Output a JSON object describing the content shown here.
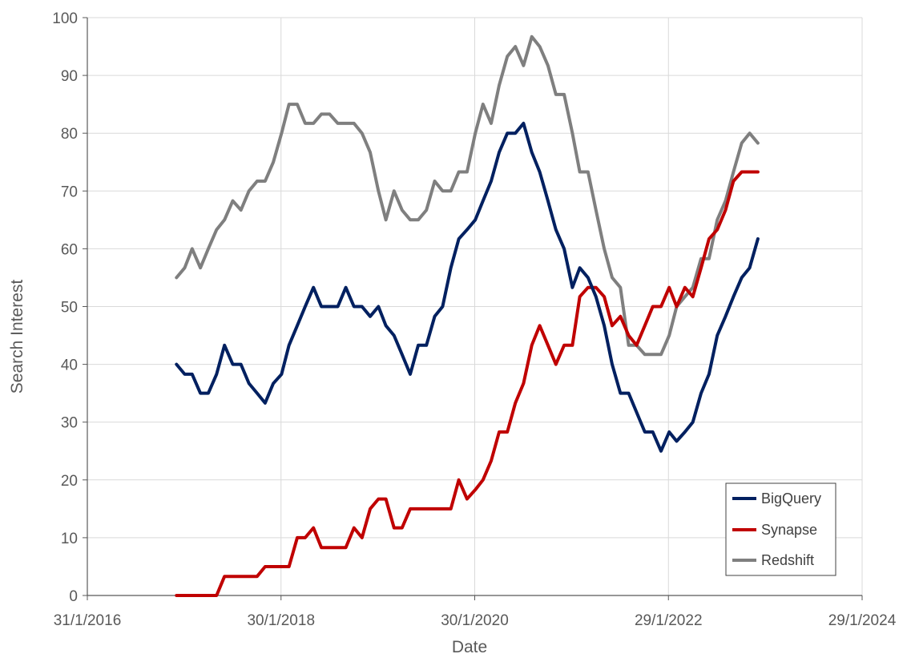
{
  "chart_data": {
    "type": "line",
    "title": "",
    "xlabel": "Date",
    "ylabel": "Search Interest",
    "xlim": [
      "2016-01-31",
      "2024-01-29"
    ],
    "ylim": [
      0,
      100
    ],
    "x_ticks": [
      "31/1/2016",
      "30/1/2018",
      "30/1/2020",
      "29/1/2022",
      "29/1/2024"
    ],
    "x_tick_dates": [
      "2016-01-31",
      "2018-01-30",
      "2020-01-30",
      "2022-01-29",
      "2024-01-29"
    ],
    "y_ticks": [
      0,
      10,
      20,
      30,
      40,
      50,
      60,
      70,
      80,
      90,
      100
    ],
    "grid": true,
    "legend_position": "bottom-right",
    "x": [
      "2017-01-01",
      "2017-02-01",
      "2017-03-01",
      "2017-04-01",
      "2017-05-01",
      "2017-06-01",
      "2017-07-01",
      "2017-08-01",
      "2017-09-01",
      "2017-10-01",
      "2017-11-01",
      "2017-12-01",
      "2018-01-01",
      "2018-02-01",
      "2018-03-01",
      "2018-04-01",
      "2018-05-01",
      "2018-06-01",
      "2018-07-01",
      "2018-08-01",
      "2018-09-01",
      "2018-10-01",
      "2018-11-01",
      "2018-12-01",
      "2019-01-01",
      "2019-02-01",
      "2019-03-01",
      "2019-04-01",
      "2019-05-01",
      "2019-06-01",
      "2019-07-01",
      "2019-08-01",
      "2019-09-01",
      "2019-10-01",
      "2019-11-01",
      "2019-12-01",
      "2020-01-01",
      "2020-02-01",
      "2020-03-01",
      "2020-04-01",
      "2020-05-01",
      "2020-06-01",
      "2020-07-01",
      "2020-08-01",
      "2020-09-01",
      "2020-10-01",
      "2020-11-01",
      "2020-12-01",
      "2021-01-01",
      "2021-02-01",
      "2021-03-01",
      "2021-04-01",
      "2021-05-01",
      "2021-06-01",
      "2021-07-01",
      "2021-08-01",
      "2021-09-01",
      "2021-10-01",
      "2021-11-01",
      "2021-12-01",
      "2022-01-01",
      "2022-02-01",
      "2022-03-01",
      "2022-04-01",
      "2022-05-01",
      "2022-06-01",
      "2022-07-01",
      "2022-08-01",
      "2022-09-01",
      "2022-10-01",
      "2022-11-01",
      "2022-12-01",
      "2023-01-01"
    ],
    "series": [
      {
        "name": "BigQuery",
        "color": "#002060",
        "values": [
          40,
          38.3,
          38.3,
          35,
          35,
          38.3,
          43.3,
          40,
          40,
          36.7,
          35,
          33.3,
          36.7,
          38.3,
          43.3,
          46.7,
          50,
          53.3,
          50,
          50,
          50,
          53.3,
          50,
          50,
          48.3,
          50,
          46.7,
          45,
          41.7,
          38.3,
          43.3,
          43.3,
          48.3,
          50,
          56.7,
          61.7,
          63.3,
          65,
          68.3,
          71.7,
          76.7,
          80,
          80,
          81.7,
          76.7,
          73.3,
          68.3,
          63.3,
          60,
          53.3,
          56.7,
          55,
          51.7,
          46.7,
          40,
          35,
          35,
          31.7,
          28.3,
          28.3,
          25,
          28.3,
          26.7,
          28.3,
          30,
          35,
          38.3,
          45,
          48.3,
          51.7,
          55,
          56.7,
          61.7
        ]
      },
      {
        "name": "Synapse",
        "color": "#C00000",
        "values": [
          0,
          0,
          0,
          0,
          0,
          0,
          3.3,
          3.3,
          3.3,
          3.3,
          3.3,
          5,
          5,
          5,
          5,
          10,
          10,
          11.7,
          8.3,
          8.3,
          8.3,
          8.3,
          11.7,
          10,
          15,
          16.7,
          16.7,
          11.7,
          11.7,
          15,
          15,
          15,
          15,
          15,
          15,
          20,
          16.7,
          18.3,
          20,
          23.3,
          28.3,
          28.3,
          33.3,
          36.7,
          43.3,
          46.7,
          43.3,
          40,
          43.3,
          43.3,
          51.7,
          53.3,
          53.3,
          51.7,
          46.7,
          48.3,
          45,
          43.3,
          46.7,
          50,
          50,
          53.3,
          50,
          53.3,
          51.7,
          56.7,
          61.7,
          63.3,
          66.7,
          71.7,
          73.3,
          73.3,
          73.3
        ]
      },
      {
        "name": "Redshift",
        "color": "#7F7F7F",
        "values": [
          55,
          56.7,
          60,
          56.7,
          60,
          63.3,
          65,
          68.3,
          66.7,
          70,
          71.7,
          71.7,
          75,
          80,
          85,
          85,
          81.7,
          81.7,
          83.3,
          83.3,
          81.7,
          81.7,
          81.7,
          80,
          76.7,
          70,
          65,
          70,
          66.7,
          65,
          65,
          66.7,
          71.7,
          70,
          70,
          73.3,
          73.3,
          80,
          85,
          81.7,
          88.3,
          93.3,
          95,
          91.7,
          96.7,
          95,
          91.7,
          86.7,
          86.7,
          80,
          73.3,
          73.3,
          66.7,
          60,
          55,
          53.3,
          43.3,
          43.3,
          41.7,
          41.7,
          41.7,
          45,
          50,
          51.7,
          53.3,
          58.3,
          58.3,
          65,
          68.3,
          73.3,
          78.3,
          80,
          78.3
        ]
      }
    ]
  }
}
